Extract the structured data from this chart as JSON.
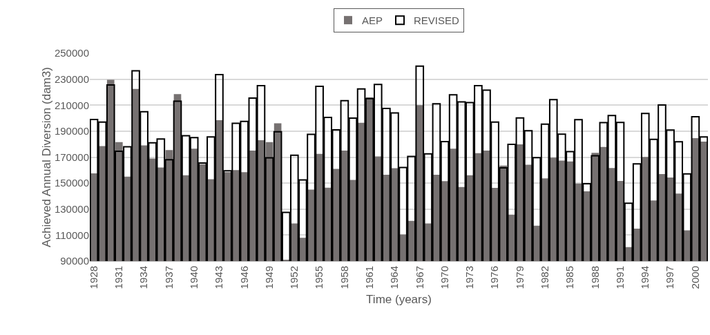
{
  "chart_data": {
    "type": "bar",
    "xlabel": "Time (years)",
    "ylabel": "Achieved Annual Diversion (dam3)",
    "categories": [
      "1928",
      null,
      null,
      "1931",
      null,
      null,
      "1934",
      null,
      null,
      "1937",
      null,
      null,
      "1940",
      null,
      null,
      "1943",
      null,
      null,
      "1946",
      null,
      null,
      "1949",
      null,
      null,
      "1952",
      null,
      null,
      "1955",
      null,
      null,
      "1958",
      null,
      null,
      "1961",
      null,
      null,
      "1964",
      null,
      null,
      "1967",
      null,
      null,
      "1970",
      null,
      null,
      "1973",
      null,
      null,
      "1976",
      null,
      null,
      "1979",
      null,
      null,
      "1982",
      null,
      null,
      "1985",
      null,
      null,
      "1988",
      null,
      null,
      "1991",
      null,
      null,
      "1994",
      null,
      null,
      "1997",
      null,
      null,
      "2000",
      null
    ],
    "series": [
      {
        "name": "AEP",
        "color": "#767171",
        "values": [
          157500,
          178500,
          229500,
          181500,
          155000,
          222500,
          179000,
          169000,
          162000,
          175500,
          218500,
          156000,
          176500,
          164500,
          153000,
          198500,
          158500,
          160000,
          158500,
          175000,
          183000,
          181500,
          196000,
          91000,
          119000,
          108000,
          145000,
          172500,
          146500,
          161000,
          175000,
          152500,
          196500,
          216000,
          170500,
          156500,
          161500,
          110500,
          121000,
          210000,
          119000,
          156500,
          151500,
          176500,
          147000,
          156000,
          173000,
          175000,
          146300,
          163500,
          125800,
          179800,
          164200,
          117300,
          153600,
          169600,
          167400,
          166700,
          149700,
          143700,
          173300,
          177900,
          161600,
          151700,
          100800,
          115000,
          170100,
          136600,
          157000,
          154300,
          141900,
          113600,
          184600,
          182000
        ]
      },
      {
        "name": "REVISED",
        "color": "#000000",
        "values": [
          199000,
          197000,
          225500,
          174500,
          178000,
          236500,
          205000,
          181000,
          184000,
          168000,
          213000,
          186500,
          185000,
          165500,
          185500,
          233500,
          159500,
          196000,
          197500,
          215500,
          225000,
          169500,
          189500,
          127500,
          171500,
          152500,
          187500,
          224500,
          200500,
          191000,
          213500,
          200000,
          222500,
          215000,
          226000,
          207500,
          204000,
          162000,
          170500,
          240000,
          172500,
          211000,
          182000,
          218000,
          212500,
          212000,
          225000,
          221500,
          197000,
          161800,
          179800,
          200200,
          190300,
          169600,
          195400,
          214200,
          187700,
          174300,
          198800,
          149500,
          171000,
          196600,
          202000,
          196700,
          134500,
          164800,
          203600,
          183700,
          210100,
          190800,
          181800,
          157100,
          201100,
          185500
        ]
      }
    ],
    "ylim": [
      90000,
      250000
    ],
    "yticks": [
      90000,
      110000,
      130000,
      150000,
      170000,
      190000,
      210000,
      230000,
      250000
    ],
    "grid": "y",
    "legend": "top"
  }
}
